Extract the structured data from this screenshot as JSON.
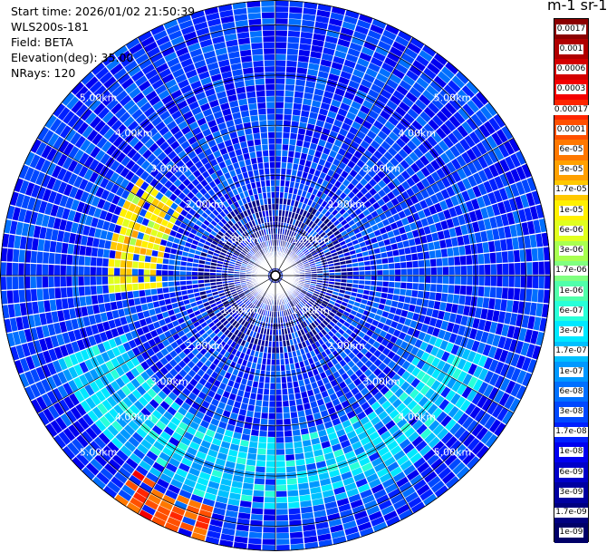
{
  "header": {
    "start_time": "Start time: 2026/01/02 21:50:39",
    "instrument": "WLS200s-181",
    "field": "Field: BETA",
    "elevation": "Elevation(deg): 35.00",
    "nrays": "NRays: 120"
  },
  "colorbar": {
    "title": "m-1 sr-1",
    "labels": [
      "0.0017",
      "0.001",
      "0.0006",
      "0.0003",
      "0.00017",
      "0.0001",
      "6e-05",
      "3e-05",
      "1.7e-05",
      "1e-05",
      "6e-06",
      "3e-06",
      "1.7e-06",
      "1e-06",
      "6e-07",
      "3e-07",
      "1.7e-07",
      "1e-07",
      "6e-08",
      "3e-08",
      "1.7e-08",
      "1e-08",
      "6e-09",
      "3e-09",
      "1.7e-09",
      "1e-09"
    ],
    "colors": [
      "#8b0000",
      "#b00000",
      "#d40000",
      "#f40000",
      "#ff2600",
      "#ff5000",
      "#ff7800",
      "#ffa000",
      "#ffc800",
      "#fff000",
      "#e0ff1e",
      "#a8ff50",
      "#80ff80",
      "#50ffaa",
      "#28ffd8",
      "#00e8ff",
      "#00c0ff",
      "#0098ff",
      "#0070ff",
      "#0048ff",
      "#0020ff",
      "#0000f0",
      "#0000c8",
      "#0000a0",
      "#000080",
      "#000068"
    ]
  },
  "chart_data": {
    "type": "heatmap",
    "projection": "polar PPI",
    "field": "BETA",
    "elevation_deg": 35.0,
    "n_rays": 120,
    "range_rings_km": [
      1,
      2,
      3,
      4,
      5
    ],
    "range_ring_labels": [
      "1.00km",
      "2.00km",
      "3.00km",
      "4.00km",
      "5.00km"
    ],
    "max_range_km": 5.5,
    "color_scale": "log",
    "value_min": 1e-09,
    "value_max": 0.0017,
    "features": [
      {
        "description": "weak background",
        "typical_value": 2e-08
      },
      {
        "description": "elevated arc south",
        "range_km": [
          3.2,
          4.6
        ],
        "azimuth_deg": [
          110,
          250
        ],
        "typical_value": 2e-07
      },
      {
        "description": "strong returns south-west",
        "range_km": [
          4.8,
          5.5
        ],
        "azimuth_deg": [
          195,
          215
        ],
        "typical_value": 0.0001
      },
      {
        "description": "moderate returns west",
        "range_km": [
          2.3,
          3.3
        ],
        "azimuth_deg": [
          265,
          305
        ],
        "typical_value": 1e-05
      }
    ]
  }
}
